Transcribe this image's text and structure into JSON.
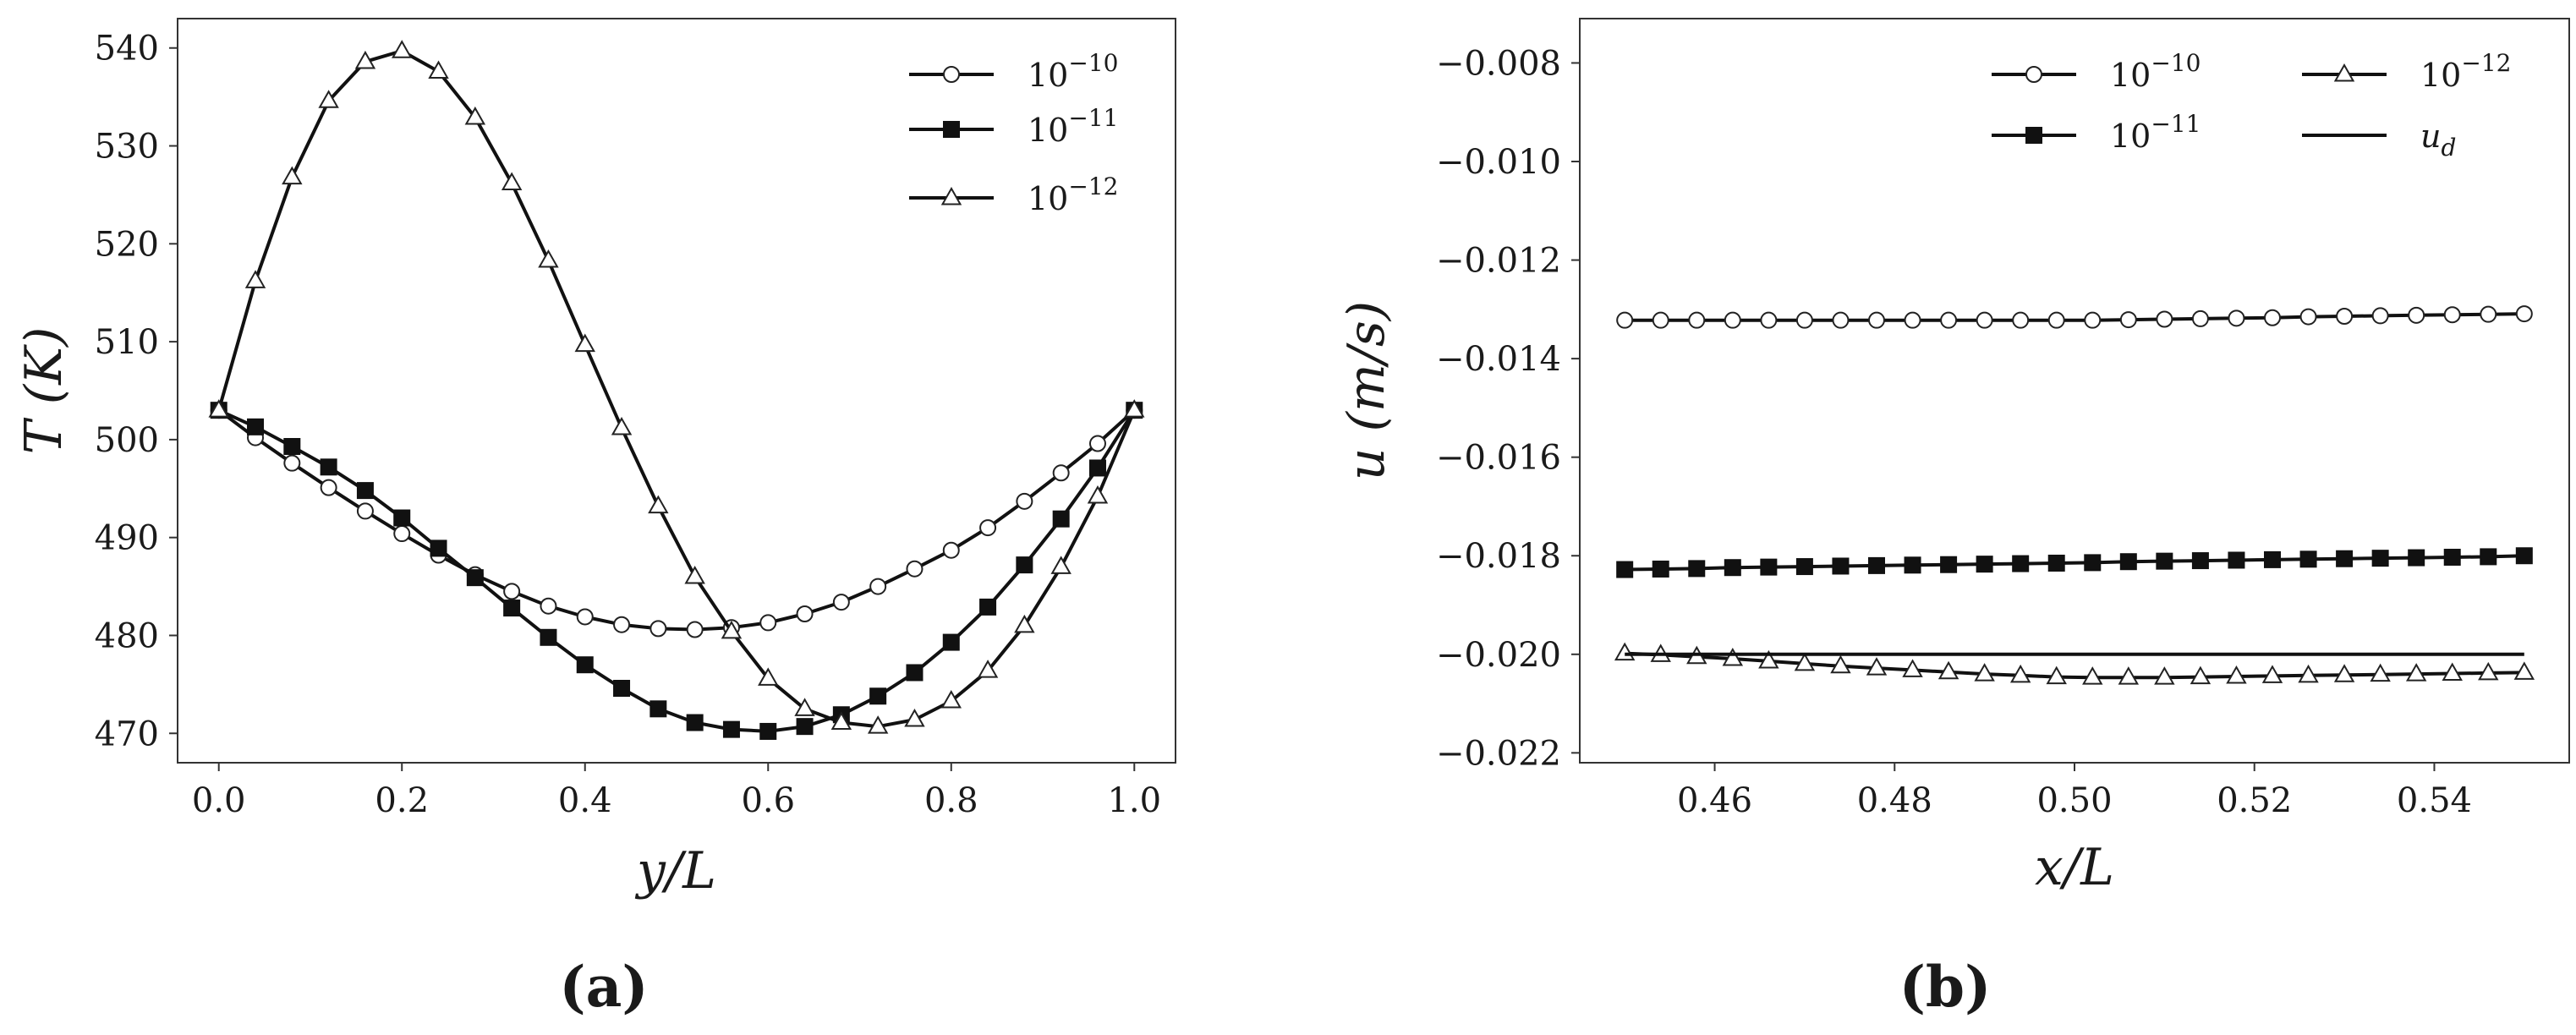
{
  "chart_data": [
    {
      "type": "line",
      "panel_label": "(a)",
      "xlabel": "y/L",
      "ylabel": "T (K)",
      "xlim": [
        -0.045,
        1.045
      ],
      "ylim": [
        467.0,
        543.0
      ],
      "xticks": [
        0.0,
        0.2,
        0.4,
        0.6,
        0.8,
        1.0
      ],
      "xtick_labels": [
        "0.0",
        "0.2",
        "0.4",
        "0.6",
        "0.8",
        "1.0"
      ],
      "yticks": [
        470,
        480,
        490,
        500,
        510,
        520,
        530,
        540
      ],
      "ytick_labels": [
        "470",
        "480",
        "490",
        "500",
        "510",
        "520",
        "530",
        "540"
      ],
      "legend_position": "top-right",
      "x": [
        0.0,
        0.04,
        0.08,
        0.12,
        0.16,
        0.2,
        0.24,
        0.28,
        0.32,
        0.36,
        0.4,
        0.44,
        0.48,
        0.52,
        0.56,
        0.6,
        0.64,
        0.68,
        0.72,
        0.76,
        0.8,
        0.84,
        0.88,
        0.92,
        0.96,
        1.0
      ],
      "series": [
        {
          "name": "10^{-10}",
          "label_base": "10",
          "label_exp": "−10",
          "marker": "circle-open",
          "values": [
            503.0,
            500.2,
            497.6,
            495.1,
            492.7,
            490.4,
            488.2,
            486.2,
            484.5,
            483.0,
            481.9,
            481.1,
            480.7,
            480.6,
            480.8,
            481.3,
            482.2,
            483.4,
            485.0,
            486.8,
            488.7,
            491.0,
            493.7,
            496.6,
            499.6,
            503.0
          ]
        },
        {
          "name": "10^{-11}",
          "label_base": "10",
          "label_exp": "−11",
          "marker": "square-filled",
          "values": [
            503.0,
            501.3,
            499.3,
            497.2,
            494.8,
            492.0,
            488.9,
            485.9,
            482.8,
            479.8,
            477.0,
            474.6,
            472.5,
            471.1,
            470.4,
            470.2,
            470.7,
            471.9,
            473.8,
            476.2,
            479.3,
            482.9,
            487.2,
            491.9,
            497.1,
            503.0
          ]
        },
        {
          "name": "10^{-12}",
          "label_base": "10",
          "label_exp": "−12",
          "marker": "triangle-open",
          "values": [
            503.0,
            516.2,
            526.8,
            534.6,
            538.6,
            539.7,
            537.6,
            532.9,
            526.2,
            518.3,
            509.7,
            501.2,
            493.2,
            486.0,
            480.4,
            475.6,
            472.5,
            471.1,
            470.7,
            471.4,
            473.3,
            476.4,
            481.0,
            487.0,
            494.2,
            503.0
          ]
        }
      ]
    },
    {
      "type": "line",
      "panel_label": "(b)",
      "xlabel": "x/L",
      "ylabel": "u (m/s)",
      "xlim": [
        0.445,
        0.555
      ],
      "ylim": [
        -0.0222,
        -0.0071
      ],
      "xticks": [
        0.46,
        0.48,
        0.5,
        0.52,
        0.54
      ],
      "xtick_labels": [
        "0.46",
        "0.48",
        "0.50",
        "0.52",
        "0.54"
      ],
      "yticks": [
        -0.008,
        -0.01,
        -0.012,
        -0.014,
        -0.016,
        -0.018,
        -0.02,
        -0.022
      ],
      "ytick_labels": [
        "−0.008",
        "−0.010",
        "−0.012",
        "−0.014",
        "−0.016",
        "−0.018",
        "−0.020",
        "−0.022"
      ],
      "legend_position": "top-right",
      "x": [
        0.45,
        0.454,
        0.458,
        0.462,
        0.466,
        0.47,
        0.474,
        0.478,
        0.482,
        0.486,
        0.49,
        0.494,
        0.498,
        0.502,
        0.506,
        0.51,
        0.514,
        0.518,
        0.522,
        0.526,
        0.53,
        0.534,
        0.538,
        0.542,
        0.546,
        0.55
      ],
      "series": [
        {
          "name": "10^{-10}",
          "label_base": "10",
          "label_exp": "−10",
          "marker": "circle-open",
          "values": [
            -0.01322,
            -0.01322,
            -0.01322,
            -0.01322,
            -0.01322,
            -0.01322,
            -0.01322,
            -0.01322,
            -0.01322,
            -0.01322,
            -0.01322,
            -0.01322,
            -0.01322,
            -0.01322,
            -0.01321,
            -0.0132,
            -0.01319,
            -0.01318,
            -0.01317,
            -0.01315,
            -0.01314,
            -0.01313,
            -0.01312,
            -0.01311,
            -0.0131,
            -0.01309
          ]
        },
        {
          "name": "10^{-11}",
          "label_base": "10",
          "label_exp": "−11",
          "marker": "square-filled",
          "values": [
            -0.01828,
            -0.01827,
            -0.01826,
            -0.01824,
            -0.01823,
            -0.01822,
            -0.01821,
            -0.0182,
            -0.01819,
            -0.01818,
            -0.01817,
            -0.01816,
            -0.01815,
            -0.01814,
            -0.01812,
            -0.01811,
            -0.0181,
            -0.01809,
            -0.01808,
            -0.01807,
            -0.01806,
            -0.01805,
            -0.01804,
            -0.01803,
            -0.01802,
            -0.018
          ]
        },
        {
          "name": "10^{-12}",
          "label_base": "10",
          "label_exp": "−12",
          "marker": "triangle-open",
          "values": [
            -0.01998,
            -0.02001,
            -0.02005,
            -0.02009,
            -0.02014,
            -0.02019,
            -0.02024,
            -0.02028,
            -0.02032,
            -0.02036,
            -0.0204,
            -0.02043,
            -0.02046,
            -0.02047,
            -0.02047,
            -0.02047,
            -0.02046,
            -0.02045,
            -0.02044,
            -0.02043,
            -0.02042,
            -0.02041,
            -0.0204,
            -0.02039,
            -0.02038,
            -0.02037
          ]
        },
        {
          "name": "u_d",
          "label_base": "u",
          "label_sub": "d",
          "marker": "none",
          "values": [
            -0.02,
            -0.02,
            -0.02,
            -0.02,
            -0.02,
            -0.02,
            -0.02,
            -0.02,
            -0.02,
            -0.02,
            -0.02,
            -0.02,
            -0.02,
            -0.02,
            -0.02,
            -0.02,
            -0.02,
            -0.02,
            -0.02,
            -0.02,
            -0.02,
            -0.02,
            -0.02,
            -0.02,
            -0.02,
            -0.02
          ]
        }
      ]
    }
  ]
}
